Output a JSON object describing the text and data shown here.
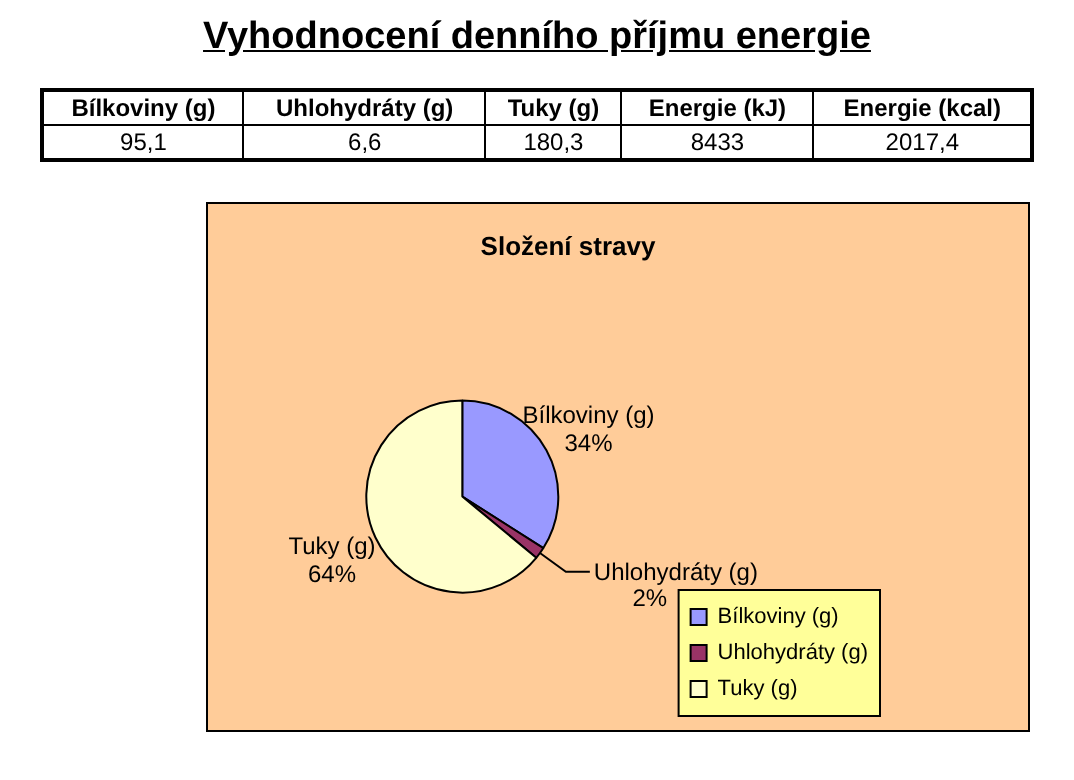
{
  "chart_data": {
    "type": "pie",
    "title": "Složení stravy",
    "subtitle": "Vyhodnocení denního příjmu energie",
    "categories": [
      "Bílkoviny (g)",
      "Uhlohydráty (g)",
      "Tuky (g)"
    ],
    "values": [
      34,
      2,
      64
    ],
    "value_labels": [
      "34%",
      "2%",
      "64%"
    ],
    "colors": [
      "#9999ff",
      "#993366",
      "#ffffcc"
    ],
    "legend": "bottom right",
    "annotations": [
      "Bílkoviny (g)",
      "Uhlohydráty (g)",
      "Tuky (g)",
      "Energie (kJ)",
      "Energie (kcal)",
      "95,1",
      "6,6",
      "180,3",
      "8433",
      "2017,4"
    ]
  }
}
